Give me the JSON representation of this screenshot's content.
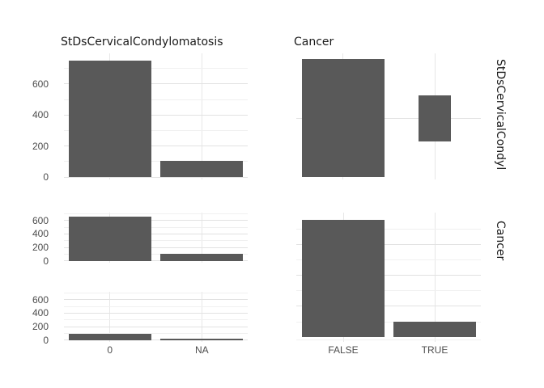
{
  "figure": {
    "background": "#ffffff",
    "bar_color": "#595959",
    "grid_major_color": "#e2e2e2",
    "grid_minor_color": "#f0f0f0",
    "grid_vertical_color": "#e7e7e7",
    "axis_text_color": "#4d4d4d",
    "strip_text_color": "#1a1a1a"
  },
  "top_strips": {
    "col1_title": "StDsCervicalCondylomatosis",
    "col2_title": "Cancer"
  },
  "right_strips": {
    "row1_label": "StDsCervicalCondyl",
    "row2_label": "Cancer"
  },
  "x_axis": {
    "left_labels": [
      "0",
      "NA"
    ],
    "right_labels": [
      "FALSE",
      "TRUE"
    ]
  },
  "chart_data": [
    {
      "id": "stds-distribution",
      "type": "bar",
      "position": "top-left",
      "title": "StDsCervicalCondylomatosis",
      "categories": [
        "0",
        "NA"
      ],
      "values": [
        753,
        105
      ],
      "ylabel_ticks": [
        0,
        200,
        400,
        600
      ],
      "minor_gridlines": [
        100,
        300,
        500,
        700
      ],
      "ylim": [
        0,
        800
      ],
      "xlabel": "",
      "ylabel": ""
    },
    {
      "id": "cancer-vs-stds-count",
      "type": "count-rect",
      "position": "top-right",
      "title": "Cancer",
      "right_strip": "StDsCervicalCondyl",
      "x_categories": [
        "FALSE",
        "TRUE"
      ],
      "y_categories": [
        "0"
      ],
      "counts": [
        655,
        98
      ],
      "encoding": "rectangle side proportional to sqrt(count)"
    },
    {
      "id": "stds-by-cancer-false",
      "type": "bar",
      "position": "middle-left",
      "facet": "Cancer = FALSE",
      "categories": [
        "0",
        "NA"
      ],
      "values": [
        655,
        103
      ],
      "ylabel_ticks": [
        0,
        200,
        400,
        600
      ],
      "minor_gridlines": [
        100,
        300,
        500,
        700
      ],
      "ylim": [
        0,
        717
      ]
    },
    {
      "id": "stds-by-cancer-true",
      "type": "bar",
      "position": "bottom-left",
      "facet": "Cancer = TRUE",
      "categories": [
        "0",
        "NA"
      ],
      "values": [
        98,
        2
      ],
      "ylabel_ticks": [
        0,
        200,
        400,
        600
      ],
      "minor_gridlines": [
        100,
        300,
        500,
        700
      ],
      "ylim": [
        0,
        717
      ]
    },
    {
      "id": "cancer-distribution",
      "type": "bar",
      "position": "bottom-right",
      "right_strip": "Cancer",
      "categories": [
        "FALSE",
        "TRUE"
      ],
      "values": [
        758,
        100
      ],
      "ylabel_ticks": [],
      "major_gridlines": [
        200,
        400,
        600
      ],
      "minor_gridlines": [
        100,
        300,
        500,
        700
      ],
      "ylim": [
        0,
        805
      ]
    }
  ]
}
